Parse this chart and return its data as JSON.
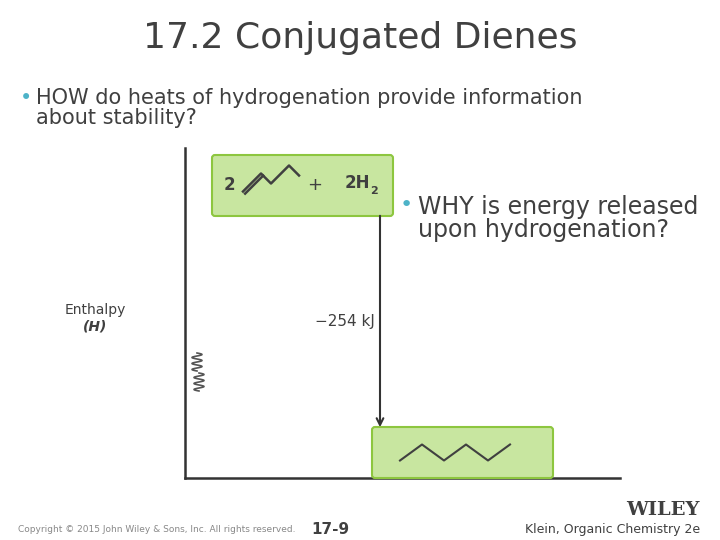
{
  "title": "17.2 Conjugated Dienes",
  "title_fontsize": 26,
  "bullet1_line1": "• HOW do heats of hydrogenation provide information",
  "bullet1_line2": "   about stability?",
  "bullet1_fontsize": 15,
  "bullet2_line1": "• WHY is energy released",
  "bullet2_line2": "   upon hydrogenation?",
  "bullet2_fontsize": 17,
  "enthalpy_label": "Enthalpy\n(H)",
  "energy_label": "−254 kJ",
  "copyright": "Copyright © 2015 John Wiley & Sons, Inc. All rights reserved.",
  "page_number": "17-9",
  "publisher": "WILEY",
  "book": "Klein, Organic Chemistry 2e",
  "bg_color": "#ffffff",
  "green_box_color": "#c8e6a0",
  "green_box_border": "#8dc63f",
  "teal_bullet_color": "#4db3c8",
  "arrow_color": "#333333",
  "axis_color": "#333333",
  "text_color": "#404040",
  "wiggly_color": "#555555"
}
